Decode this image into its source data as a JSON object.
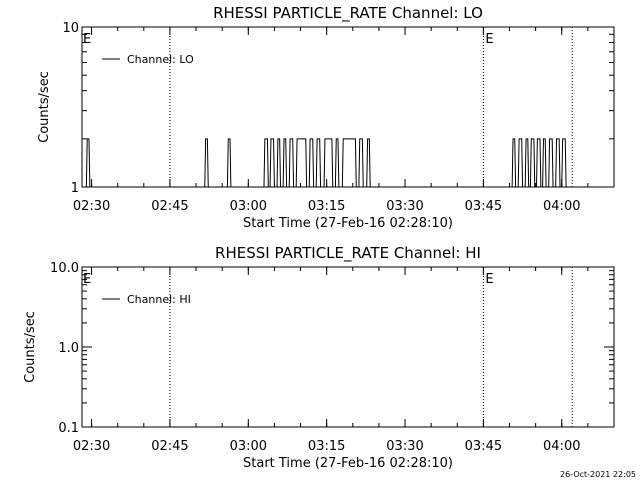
{
  "chart_data": [
    {
      "type": "line",
      "title": "RHESSI PARTICLE_RATE Channel: LO",
      "xlabel": "Start Time (27-Feb-16 02:28:10)",
      "ylabel": "Counts/sec",
      "y_scale": "log",
      "ylim": [
        1,
        10
      ],
      "xlim": [
        "02:28:10",
        "04:10:00"
      ],
      "x_tick_labels": [
        "02:30",
        "02:45",
        "03:00",
        "03:15",
        "03:30",
        "03:45",
        "04:00"
      ],
      "y_tick_labels": [
        "1",
        "10"
      ],
      "legend": {
        "entries": [
          "Channel: LO"
        ],
        "placement": "top-left"
      },
      "grid": false,
      "vertical_markers": [
        {
          "time": "02:45",
          "label": ""
        },
        {
          "time": "03:45",
          "label": "E"
        },
        {
          "time": "04:02",
          "label": ""
        }
      ],
      "plot_start_marker": "E",
      "series": [
        {
          "name": "Channel: LO",
          "values_note": "",
          "points": [
            [
              "02:28:10",
              1
            ],
            [
              "02:29:00",
              1
            ],
            [
              "02:29:10",
              2
            ],
            [
              "02:29:30",
              2
            ],
            [
              "02:29:40",
              1
            ],
            [
              "02:51:40",
              1
            ],
            [
              "02:51:50",
              2
            ],
            [
              "02:52:10",
              2
            ],
            [
              "02:52:20",
              1
            ],
            [
              "02:56:00",
              1
            ],
            [
              "02:56:10",
              2
            ],
            [
              "02:56:30",
              2
            ],
            [
              "02:56:40",
              1
            ],
            [
              "03:03:00",
              1
            ],
            [
              "03:03:10",
              2
            ],
            [
              "03:03:40",
              2
            ],
            [
              "03:03:50",
              1
            ],
            [
              "03:04:10",
              1
            ],
            [
              "03:04:20",
              2
            ],
            [
              "03:04:50",
              2
            ],
            [
              "03:05:00",
              1
            ],
            [
              "03:05:30",
              1
            ],
            [
              "03:05:40",
              2
            ],
            [
              "03:06:00",
              2
            ],
            [
              "03:06:10",
              1
            ],
            [
              "03:06:40",
              1
            ],
            [
              "03:06:50",
              2
            ],
            [
              "03:07:10",
              2
            ],
            [
              "03:07:20",
              1
            ],
            [
              "03:07:50",
              1
            ],
            [
              "03:08:00",
              2
            ],
            [
              "03:08:30",
              2
            ],
            [
              "03:08:40",
              1
            ],
            [
              "03:09:10",
              1
            ],
            [
              "03:09:20",
              2
            ],
            [
              "03:11:00",
              2
            ],
            [
              "03:11:10",
              1
            ],
            [
              "03:11:40",
              1
            ],
            [
              "03:11:50",
              2
            ],
            [
              "03:12:20",
              2
            ],
            [
              "03:12:30",
              1
            ],
            [
              "03:13:00",
              1
            ],
            [
              "03:13:10",
              2
            ],
            [
              "03:13:40",
              2
            ],
            [
              "03:13:50",
              1
            ],
            [
              "03:14:30",
              1
            ],
            [
              "03:14:40",
              2
            ],
            [
              "03:16:00",
              2
            ],
            [
              "03:16:10",
              1
            ],
            [
              "03:16:40",
              1
            ],
            [
              "03:16:50",
              2
            ],
            [
              "03:17:10",
              2
            ],
            [
              "03:17:20",
              1
            ],
            [
              "03:18:00",
              1
            ],
            [
              "03:18:10",
              2
            ],
            [
              "03:20:30",
              2
            ],
            [
              "03:20:40",
              1
            ],
            [
              "03:21:10",
              1
            ],
            [
              "03:21:20",
              2
            ],
            [
              "03:21:50",
              2
            ],
            [
              "03:22:00",
              1
            ],
            [
              "03:22:40",
              1
            ],
            [
              "03:22:50",
              2
            ],
            [
              "03:23:10",
              2
            ],
            [
              "03:23:20",
              1
            ],
            [
              "03:50:30",
              1
            ],
            [
              "03:50:40",
              2
            ],
            [
              "03:51:00",
              2
            ],
            [
              "03:51:10",
              1
            ],
            [
              "03:51:40",
              1
            ],
            [
              "03:51:50",
              2
            ],
            [
              "03:52:20",
              2
            ],
            [
              "03:52:30",
              1
            ],
            [
              "03:53:00",
              1
            ],
            [
              "03:53:10",
              2
            ],
            [
              "03:53:30",
              2
            ],
            [
              "03:53:40",
              1
            ],
            [
              "03:54:00",
              1
            ],
            [
              "03:54:10",
              2
            ],
            [
              "03:54:40",
              2
            ],
            [
              "03:54:50",
              1
            ],
            [
              "03:55:10",
              1
            ],
            [
              "03:55:20",
              2
            ],
            [
              "03:55:50",
              2
            ],
            [
              "03:56:00",
              1
            ],
            [
              "03:56:20",
              1
            ],
            [
              "03:56:30",
              2
            ],
            [
              "03:56:50",
              2
            ],
            [
              "03:57:00",
              1
            ],
            [
              "03:57:30",
              1
            ],
            [
              "03:57:40",
              2
            ],
            [
              "03:58:10",
              2
            ],
            [
              "03:58:20",
              1
            ],
            [
              "03:58:50",
              1
            ],
            [
              "03:59:00",
              2
            ],
            [
              "03:59:30",
              2
            ],
            [
              "03:59:40",
              1
            ],
            [
              "04:00:00",
              1
            ],
            [
              "04:00:10",
              2
            ],
            [
              "04:00:40",
              2
            ],
            [
              "04:00:50",
              1
            ],
            [
              "04:10:00",
              1
            ]
          ]
        }
      ]
    },
    {
      "type": "line",
      "title": "RHESSI PARTICLE_RATE Channel: HI",
      "xlabel": "Start Time (27-Feb-16 02:28:10)",
      "ylabel": "Counts/sec",
      "y_scale": "log",
      "ylim": [
        0.1,
        10
      ],
      "xlim": [
        "02:28:10",
        "04:10:00"
      ],
      "x_tick_labels": [
        "02:30",
        "02:45",
        "03:00",
        "03:15",
        "03:30",
        "03:45",
        "04:00"
      ],
      "y_tick_labels": [
        "0.1",
        "1.0",
        "10.0"
      ],
      "legend": {
        "entries": [
          "Channel: HI"
        ],
        "placement": "top-left"
      },
      "grid": false,
      "vertical_markers": [
        {
          "time": "02:45",
          "label": ""
        },
        {
          "time": "03:45",
          "label": "E"
        },
        {
          "time": "04:02",
          "label": ""
        }
      ],
      "plot_start_marker": "E",
      "series": [
        {
          "name": "Channel: HI",
          "points": []
        }
      ]
    }
  ],
  "footer": {
    "timestamp": "26-Oct-2021 22:05"
  }
}
